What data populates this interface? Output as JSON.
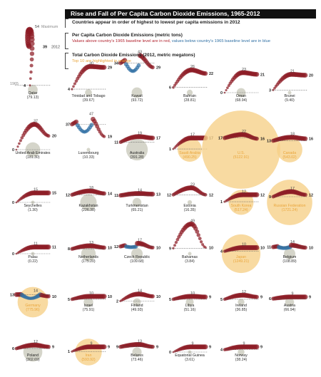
{
  "chart_data": {
    "type": "scatter",
    "title": "Rise and Fall of Per Capita Carbon Dioxide Emissions, 1965-2012",
    "subtitle": "Countries appear in order of highest to lowest per capita emissions in 2012",
    "legend": {
      "per_capita_heading": "Per Capita Carbon Dioxide Emissions (metric tons)",
      "per_capita_note_red": "Values above country's 1965 baseline level are in red,",
      "per_capita_note_blue": "values below country's 1965 baseline level are in blue",
      "total_heading": "Total Carbon Dioxide Emissions (2012, metric megatons)",
      "total_note": "Top 10 are highlighted in orange"
    },
    "example_labels": {
      "maximum": "Maximum",
      "year_end": "2012",
      "year_start": "1965"
    },
    "colors": {
      "above_baseline": "#8c1a24",
      "below_baseline": "#2f6fa3",
      "total_circle": "#d0d0c4",
      "top10_circle": "#f6cf86",
      "top10_label": "#e9a53b"
    },
    "countries": [
      {
        "name": "Qatar",
        "total": "(79.13)",
        "total_value": 79.13,
        "top10": false,
        "start": 4,
        "max": 54,
        "end": 39,
        "below": 0
      },
      {
        "name": "Trinidad and Tobago",
        "total": "(39.67)",
        "total_value": 39.67,
        "top10": false,
        "start": 4,
        "max": 30,
        "end": 29,
        "below": 0
      },
      {
        "name": "Kuwait",
        "total": "(93.72)",
        "total_value": 93.72,
        "top10": false,
        "start": 34,
        "max": 43,
        "end": 29,
        "below": 0.55
      },
      {
        "name": "Bahrain",
        "total": "(28.81)",
        "total_value": 28.81,
        "top10": false,
        "start": 6,
        "max": 26,
        "end": 22,
        "below": 0
      },
      {
        "name": "Oman",
        "total": "(68.94)",
        "total_value": 68.94,
        "top10": false,
        "start": 0,
        "max": 23,
        "end": 21,
        "below": 0
      },
      {
        "name": "Brunei",
        "total": "(9.40)",
        "total_value": 9.4,
        "top10": false,
        "start": 3,
        "max": 21,
        "end": 20,
        "below": 0
      },
      {
        "name": "United Arab Emirates",
        "total": "(181.30)",
        "total_value": 181.3,
        "top10": false,
        "start": 0,
        "max": 37,
        "end": 20,
        "below": 0
      },
      {
        "name": "Luxembourg",
        "total": "(10.33)",
        "total_value": 10.33,
        "top10": false,
        "start": 37,
        "max": 47,
        "end": 19,
        "below": 0.6
      },
      {
        "name": "Australia",
        "total": "(391.28)",
        "total_value": 391.28,
        "top10": false,
        "start": 11,
        "max": 19,
        "end": 17,
        "below": 0
      },
      {
        "name": "Saudi Arabia",
        "total": "(490.25)",
        "total_value": 490.25,
        "top10": true,
        "start": 1,
        "max": 17,
        "end": 17,
        "below": 0
      },
      {
        "name": "U.S.",
        "total": "(5122.91)",
        "total_value": 5122.91,
        "top10": true,
        "start": 17,
        "max": 22,
        "end": 16,
        "below": 0
      },
      {
        "name": "Canada",
        "total": "(543.02)",
        "total_value": 543.02,
        "top10": true,
        "start": 13,
        "max": 18,
        "end": 16,
        "below": 0
      },
      {
        "name": "Seychelles",
        "total": "(1.30)",
        "total_value": 1.3,
        "top10": false,
        "start": 0,
        "max": 15,
        "end": 15,
        "below": 0
      },
      {
        "name": "Kazakhstan",
        "total": "(226.38)",
        "total_value": 226.38,
        "top10": false,
        "start": 12,
        "max": 18,
        "end": 14,
        "below": 0
      },
      {
        "name": "Turkmenistan",
        "total": "(65.21)",
        "total_value": 65.21,
        "top10": false,
        "start": 11,
        "max": 14,
        "end": 13,
        "below": 0
      },
      {
        "name": "Estonia",
        "total": "(16.35)",
        "total_value": 16.35,
        "top10": false,
        "start": 12,
        "max": 23,
        "end": 12,
        "below": 0
      },
      {
        "name": "South Korea",
        "total": "(517.24)",
        "total_value": 517.24,
        "top10": true,
        "start": 1,
        "max": 12,
        "end": 12,
        "below": 0
      },
      {
        "name": "Russian Federation",
        "total": "(1721.24)",
        "total_value": 1721.24,
        "top10": true,
        "start": 9,
        "max": 17,
        "end": 12,
        "below": 0
      },
      {
        "name": "Palau",
        "total": "(0.22)",
        "total_value": 0.22,
        "top10": false,
        "start": 0,
        "max": 11,
        "end": 11,
        "below": 0
      },
      {
        "name": "Netherlands",
        "total": "(175.20)",
        "total_value": 175.2,
        "top10": false,
        "start": 8,
        "max": 13,
        "end": 10,
        "below": 0
      },
      {
        "name": "Czech Republic",
        "total": "(109.68)",
        "total_value": 109.68,
        "top10": false,
        "start": 12,
        "max": 17,
        "end": 10,
        "below": 0.2
      },
      {
        "name": "Bahamas",
        "total": "(3.84)",
        "total_value": 3.84,
        "top10": false,
        "start": 9,
        "max": 49,
        "end": 10,
        "below": 0
      },
      {
        "name": "Japan",
        "total": "(1249.21)",
        "total_value": 1249.21,
        "top10": true,
        "start": 4,
        "max": 10,
        "end": 10,
        "below": 0
      },
      {
        "name": "Belgium",
        "total": "(108.89)",
        "total_value": 108.89,
        "top10": false,
        "start": 11,
        "max": 14,
        "end": 10,
        "below": 0.3
      },
      {
        "name": "Germany",
        "total": "(775.96)",
        "total_value": 775.96,
        "top10": true,
        "start": 13,
        "max": 14,
        "end": 10,
        "below": 1
      },
      {
        "name": "Israel",
        "total": "(75.91)",
        "total_value": 75.91,
        "top10": false,
        "start": 5,
        "max": 10,
        "end": 10,
        "below": 0
      },
      {
        "name": "Finland",
        "total": "(49.93)",
        "total_value": 49.93,
        "top10": false,
        "start": 2,
        "max": 14,
        "end": 10,
        "below": 0
      },
      {
        "name": "Libya",
        "total": "(51.16)",
        "total_value": 51.16,
        "top10": false,
        "start": 5,
        "max": 10,
        "end": 9,
        "below": 0
      },
      {
        "name": "Ireland",
        "total": "(36.85)",
        "total_value": 36.85,
        "top10": false,
        "start": 5,
        "max": 12,
        "end": 9,
        "below": 0
      },
      {
        "name": "Austria",
        "total": "(66.94)",
        "total_value": 66.94,
        "top10": false,
        "start": 6,
        "max": 9,
        "end": 9,
        "below": 0
      },
      {
        "name": "Poland",
        "total": "(302.69)",
        "total_value": 302.69,
        "top10": false,
        "start": 6,
        "max": 12,
        "end": 9,
        "below": 0
      },
      {
        "name": "Iran",
        "total": "(593.92)",
        "total_value": 593.92,
        "top10": true,
        "start": 1,
        "max": 9,
        "end": 9,
        "below": 0
      },
      {
        "name": "Belarus",
        "total": "(73.46)",
        "total_value": 73.46,
        "top10": false,
        "start": 9,
        "max": 13,
        "end": 9,
        "below": 0
      },
      {
        "name": "Equatorial Guinea",
        "total": "(3.61)",
        "total_value": 3.61,
        "top10": false,
        "start": 0,
        "max": 9,
        "end": 9,
        "below": 0
      },
      {
        "name": "Norway",
        "total": "(38.24)",
        "total_value": 38.24,
        "top10": false,
        "start": 4,
        "max": 9,
        "end": 9,
        "below": 0
      }
    ]
  }
}
